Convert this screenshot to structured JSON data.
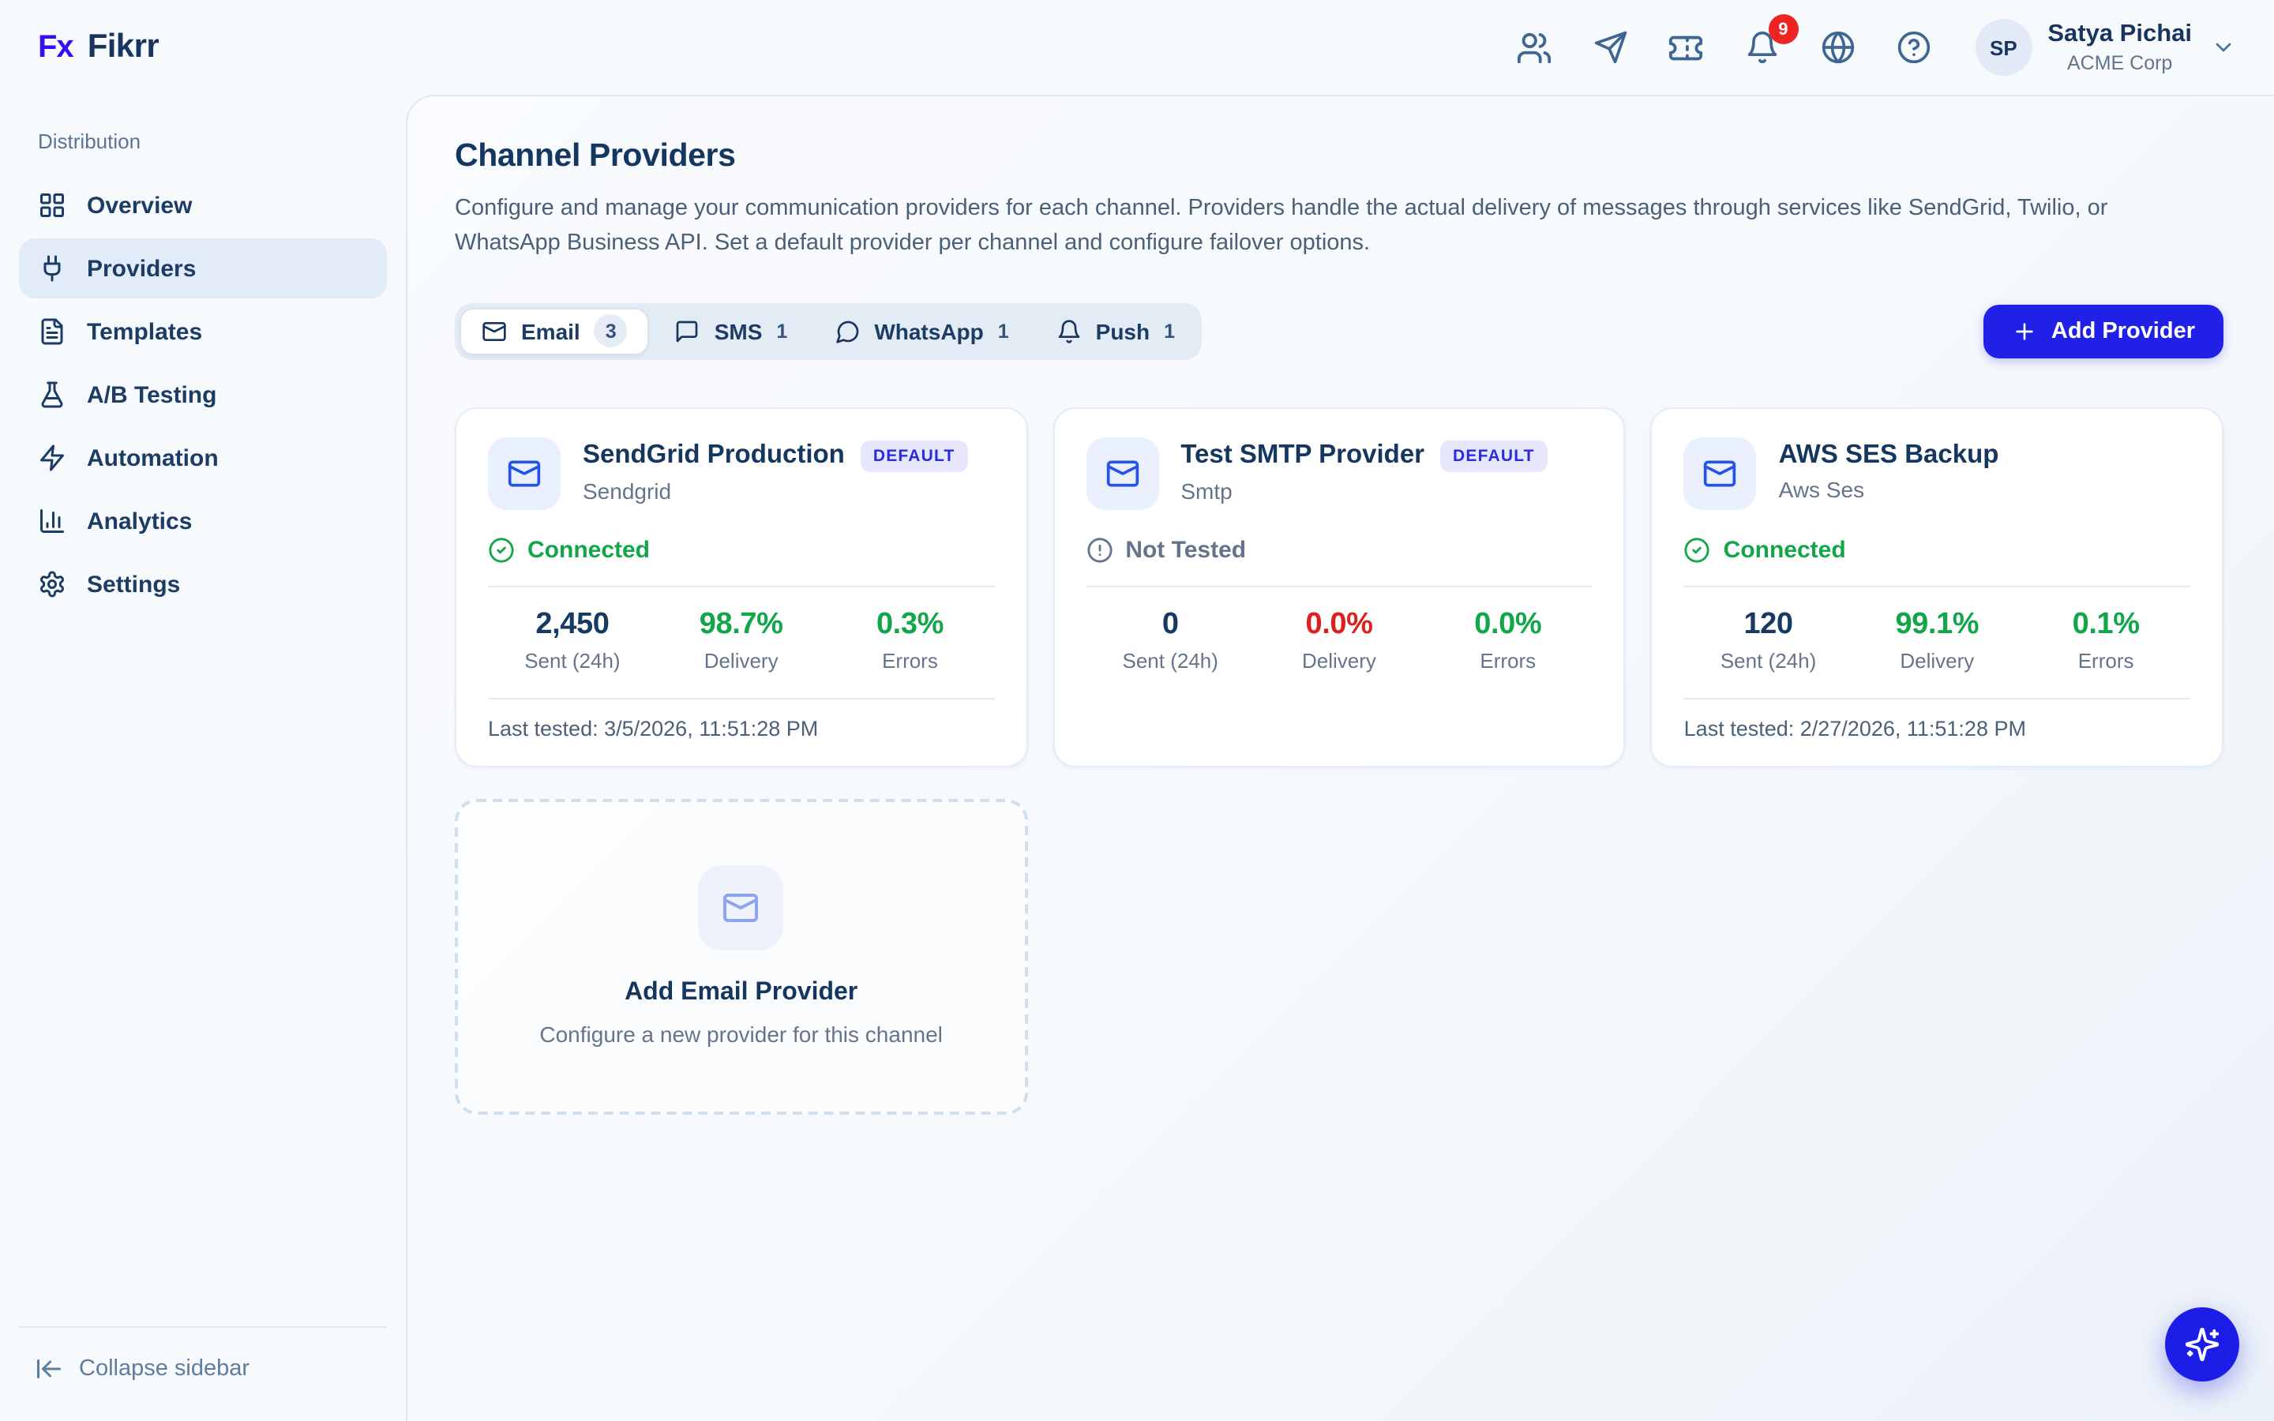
{
  "brand": {
    "logo_mark": "Fx",
    "logo_text": "Fikrr"
  },
  "header": {
    "icons": [
      "users-icon",
      "send-icon",
      "ticket-icon",
      "bell-icon",
      "globe-icon",
      "help-icon"
    ],
    "notification_count": "9",
    "avatar_initials": "SP",
    "user_name": "Satya Pichai",
    "org_name": "ACME Corp"
  },
  "sidebar": {
    "section_label": "Distribution",
    "items": [
      {
        "label": "Overview",
        "icon": "dashboard",
        "active": false
      },
      {
        "label": "Providers",
        "icon": "plug",
        "active": true
      },
      {
        "label": "Templates",
        "icon": "file-text",
        "active": false
      },
      {
        "label": "A/B Testing",
        "icon": "flask",
        "active": false
      },
      {
        "label": "Automation",
        "icon": "zap",
        "active": false
      },
      {
        "label": "Analytics",
        "icon": "chart",
        "active": false
      },
      {
        "label": "Settings",
        "icon": "gear",
        "active": false
      }
    ],
    "collapse_label": "Collapse sidebar"
  },
  "page": {
    "title": "Channel Providers",
    "description": "Configure and manage your communication providers for each channel. Providers handle the actual delivery of messages through services like SendGrid, Twilio, or WhatsApp Business API. Set a default provider per channel and configure failover options.",
    "add_button_label": "Add Provider"
  },
  "tabs": [
    {
      "label": "Email",
      "count": "3",
      "icon": "mail",
      "active": true
    },
    {
      "label": "SMS",
      "count": "1",
      "icon": "message-square",
      "active": false
    },
    {
      "label": "WhatsApp",
      "count": "1",
      "icon": "message-circle",
      "active": false
    },
    {
      "label": "Push",
      "count": "1",
      "icon": "bell",
      "active": false
    }
  ],
  "providers": [
    {
      "name": "SendGrid Production",
      "type": "Sendgrid",
      "badge": "DEFAULT",
      "status": "Connected",
      "status_kind": "connected",
      "stats": [
        {
          "value": "2,450",
          "label": "Sent (24h)",
          "color": "navy"
        },
        {
          "value": "98.7%",
          "label": "Delivery",
          "color": "green"
        },
        {
          "value": "0.3%",
          "label": "Errors",
          "color": "green"
        }
      ],
      "last_tested": "Last tested: 3/5/2026, 11:51:28 PM"
    },
    {
      "name": "Test SMTP Provider",
      "type": "Smtp",
      "badge": "DEFAULT",
      "status": "Not Tested",
      "status_kind": "not_tested",
      "stats": [
        {
          "value": "0",
          "label": "Sent (24h)",
          "color": "navy"
        },
        {
          "value": "0.0%",
          "label": "Delivery",
          "color": "red"
        },
        {
          "value": "0.0%",
          "label": "Errors",
          "color": "green"
        }
      ],
      "last_tested": null
    },
    {
      "name": "AWS SES Backup",
      "type": "Aws Ses",
      "badge": null,
      "status": "Connected",
      "status_kind": "connected",
      "stats": [
        {
          "value": "120",
          "label": "Sent (24h)",
          "color": "navy"
        },
        {
          "value": "99.1%",
          "label": "Delivery",
          "color": "green"
        },
        {
          "value": "0.1%",
          "label": "Errors",
          "color": "green"
        }
      ],
      "last_tested": "Last tested: 2/27/2026, 11:51:28 PM"
    }
  ],
  "add_card": {
    "title": "Add Email Provider",
    "subtitle": "Configure a new provider for this channel"
  },
  "colors": {
    "accent_blue": "#2020e6",
    "brand_indigo": "#3a0cf4",
    "navy": "#173a63",
    "green": "#12a64a",
    "red": "#dc1f1f",
    "notification_red": "#ee2424",
    "badge_lavender": "#e6e6fc",
    "badge_text": "#2a2ae0"
  }
}
